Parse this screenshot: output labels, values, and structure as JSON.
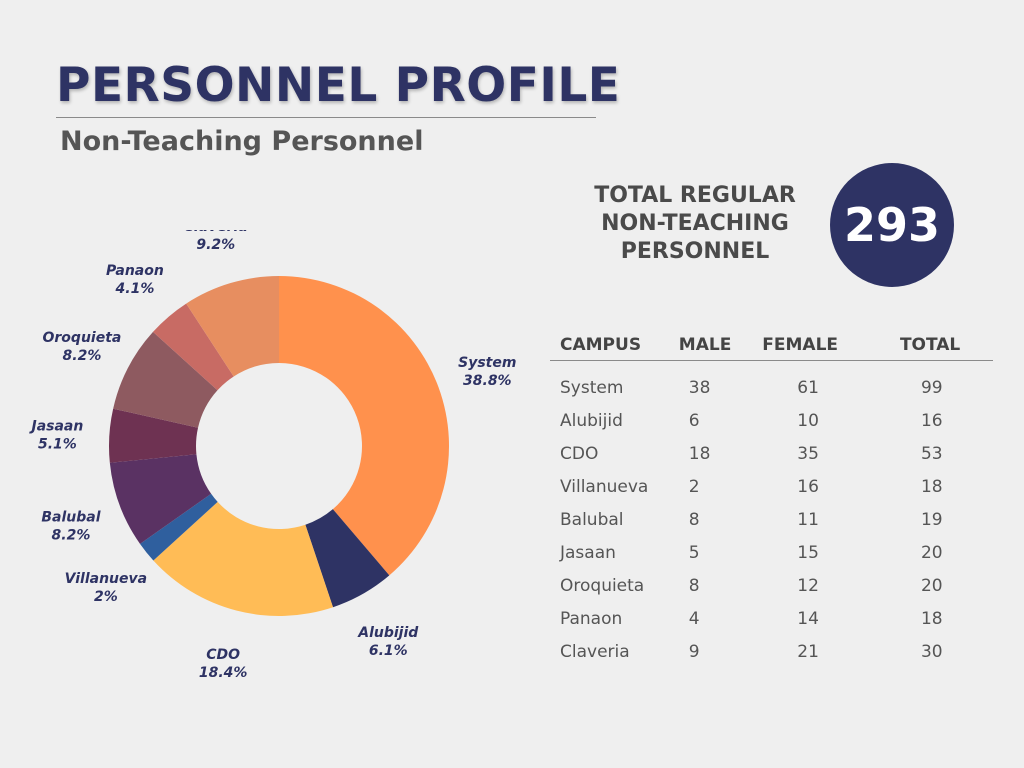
{
  "header": {
    "title": "PERSONNEL PROFILE",
    "subtitle": "Non-Teaching Personnel"
  },
  "total": {
    "label_lines": [
      "TOTAL REGULAR",
      "NON-TEACHING",
      "PERSONNEL"
    ],
    "value": "293"
  },
  "table": {
    "columns": [
      "CAMPUS",
      "MALE",
      "FEMALE",
      "TOTAL"
    ],
    "rows": [
      [
        "System",
        "38",
        "61",
        "99"
      ],
      [
        "Alubijid",
        "6",
        "10",
        "16"
      ],
      [
        "CDO",
        "18",
        "35",
        "53"
      ],
      [
        "Villanueva",
        "2",
        "16",
        "18"
      ],
      [
        "Balubal",
        "8",
        "11",
        "19"
      ],
      [
        "Jasaan",
        "5",
        "15",
        "20"
      ],
      [
        "Oroquieta",
        "8",
        "12",
        "20"
      ],
      [
        "Panaon",
        "4",
        "14",
        "18"
      ],
      [
        "Claveria",
        "9",
        "21",
        "30"
      ]
    ]
  },
  "chart_data": {
    "type": "pie",
    "donut": true,
    "categories": [
      "System",
      "Alubijid",
      "CDO",
      "Villanueva",
      "Balubal",
      "Jasaan",
      "Oroquieta",
      "Panaon",
      "Claveria"
    ],
    "values": [
      38.8,
      6.1,
      18.4,
      2,
      8.2,
      5.1,
      8.2,
      4.1,
      9.2
    ],
    "labels": [
      "38.8%",
      "6.1%",
      "18.4%",
      "2%",
      "8.2%",
      "5.1%",
      "8.2%",
      "4.1%",
      "9.2%"
    ],
    "colors": [
      "#ff914d",
      "#2e3364",
      "#ffbc56",
      "#2f5f9e",
      "#5a3263",
      "#6e3252",
      "#8e5a60",
      "#c86b64",
      "#e78e60"
    ],
    "start": "12 o'clock, clockwise",
    "legend": "none"
  }
}
